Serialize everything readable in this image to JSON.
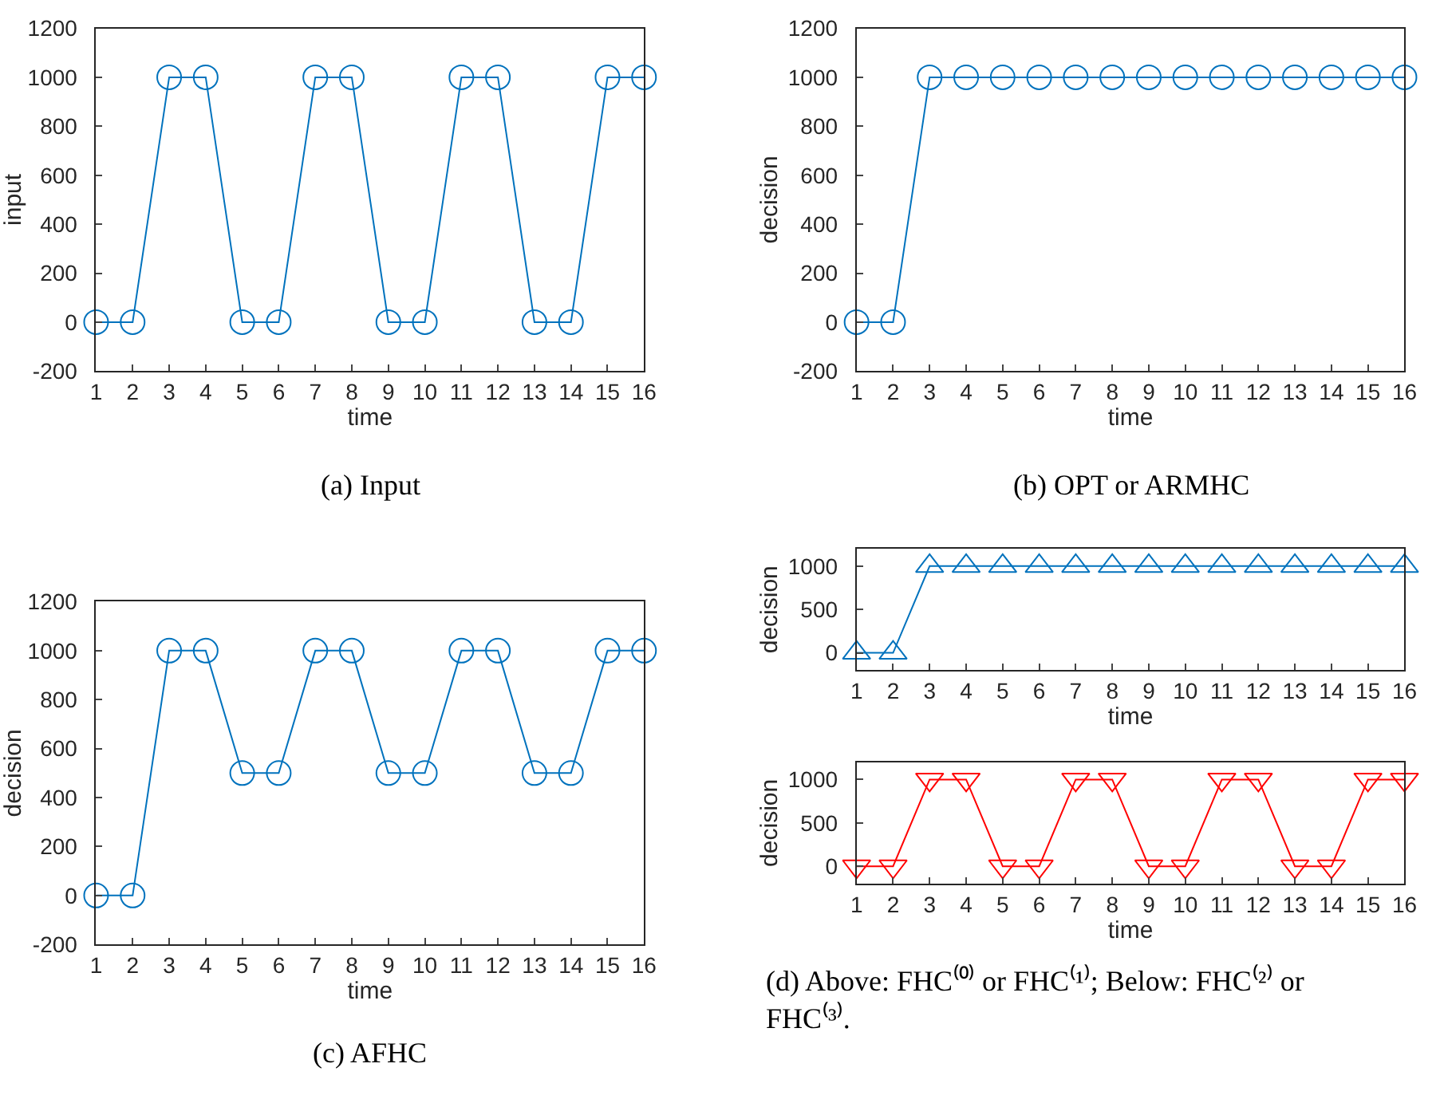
{
  "chart_data": [
    {
      "type": "line",
      "xlabel": "time",
      "ylabel": "input",
      "color": "#0072bd",
      "marker": "circle",
      "x": [
        1,
        2,
        3,
        4,
        5,
        6,
        7,
        8,
        9,
        10,
        11,
        12,
        13,
        14,
        15,
        16
      ],
      "values": [
        0,
        0,
        1000,
        1000,
        0,
        0,
        1000,
        1000,
        0,
        0,
        1000,
        1000,
        0,
        0,
        1000,
        1000
      ],
      "xlim": [
        1,
        16
      ],
      "xticks": [
        1,
        2,
        3,
        4,
        5,
        6,
        7,
        8,
        9,
        10,
        11,
        12,
        13,
        14,
        15,
        16
      ],
      "ylim": [
        -200,
        1200
      ],
      "yticks": [
        -200,
        0,
        200,
        400,
        600,
        800,
        1000,
        1200
      ],
      "annotations": [
        "(a) Input"
      ]
    },
    {
      "type": "line",
      "xlabel": "time",
      "ylabel": "decision",
      "color": "#0072bd",
      "marker": "circle",
      "x": [
        1,
        2,
        3,
        4,
        5,
        6,
        7,
        8,
        9,
        10,
        11,
        12,
        13,
        14,
        15,
        16
      ],
      "values": [
        0,
        0,
        1000,
        1000,
        1000,
        1000,
        1000,
        1000,
        1000,
        1000,
        1000,
        1000,
        1000,
        1000,
        1000,
        1000
      ],
      "xlim": [
        1,
        16
      ],
      "xticks": [
        1,
        2,
        3,
        4,
        5,
        6,
        7,
        8,
        9,
        10,
        11,
        12,
        13,
        14,
        15,
        16
      ],
      "ylim": [
        -200,
        1200
      ],
      "yticks": [
        -200,
        0,
        200,
        400,
        600,
        800,
        1000,
        1200
      ],
      "annotations": [
        "(b) OPT or ARMHC"
      ]
    },
    {
      "type": "line",
      "xlabel": "time",
      "ylabel": "decision",
      "color": "#0072bd",
      "marker": "circle",
      "x": [
        1,
        2,
        3,
        4,
        5,
        6,
        7,
        8,
        9,
        10,
        11,
        12,
        13,
        14,
        15,
        16
      ],
      "values": [
        0,
        0,
        1000,
        1000,
        500,
        500,
        1000,
        1000,
        500,
        500,
        1000,
        1000,
        500,
        500,
        1000,
        1000
      ],
      "xlim": [
        1,
        16
      ],
      "xticks": [
        1,
        2,
        3,
        4,
        5,
        6,
        7,
        8,
        9,
        10,
        11,
        12,
        13,
        14,
        15,
        16
      ],
      "ylim": [
        -200,
        1200
      ],
      "yticks": [
        -200,
        0,
        200,
        400,
        600,
        800,
        1000,
        1200
      ],
      "annotations": [
        "(c) AFHC"
      ]
    },
    {
      "type": "line",
      "xlabel": "time",
      "ylabel": "decision",
      "color": "#0072bd",
      "marker": "triangle",
      "x": [
        1,
        2,
        3,
        4,
        5,
        6,
        7,
        8,
        9,
        10,
        11,
        12,
        13,
        14,
        15,
        16
      ],
      "values": [
        0,
        0,
        1000,
        1000,
        1000,
        1000,
        1000,
        1000,
        1000,
        1000,
        1000,
        1000,
        1000,
        1000,
        1000,
        1000
      ],
      "xlim": [
        1,
        16
      ],
      "xticks": [
        1,
        2,
        3,
        4,
        5,
        6,
        7,
        8,
        9,
        10,
        11,
        12,
        13,
        14,
        15,
        16
      ],
      "ylim": [
        -200,
        1200
      ],
      "yticks": [
        0,
        500,
        1000
      ]
    },
    {
      "type": "line",
      "xlabel": "time",
      "ylabel": "decision",
      "color": "#ff0000",
      "marker": "triangle-down",
      "x": [
        1,
        2,
        3,
        4,
        5,
        6,
        7,
        8,
        9,
        10,
        11,
        12,
        13,
        14,
        15,
        16
      ],
      "values": [
        0,
        0,
        1000,
        1000,
        0,
        0,
        1000,
        1000,
        0,
        0,
        1000,
        1000,
        0,
        0,
        1000,
        1000
      ],
      "xlim": [
        1,
        16
      ],
      "xticks": [
        1,
        2,
        3,
        4,
        5,
        6,
        7,
        8,
        9,
        10,
        11,
        12,
        13,
        14,
        15,
        16
      ],
      "ylim": [
        -200,
        1200
      ],
      "yticks": [
        0,
        500,
        1000
      ],
      "annotations": [
        "(d) Above: FHC⁽⁰⁾ or FHC⁽¹⁾; Below: FHC⁽²⁾ or FHC⁽³⁾."
      ]
    }
  ]
}
